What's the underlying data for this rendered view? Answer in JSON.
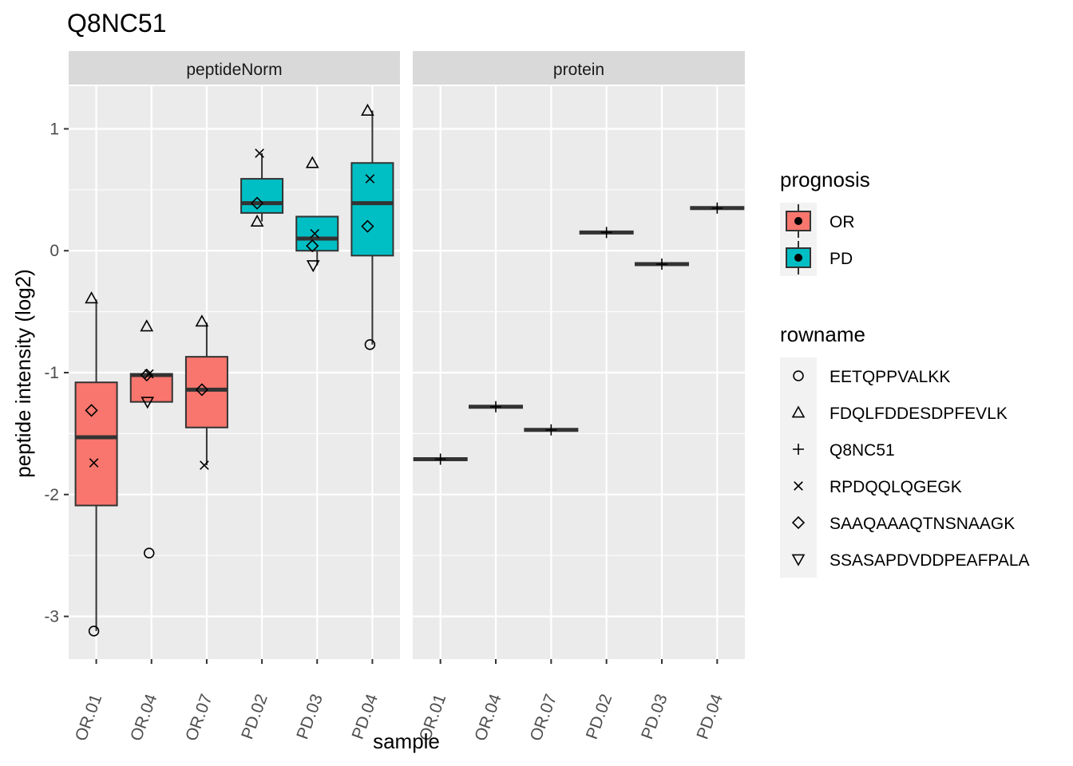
{
  "chart_data": {
    "type": "boxplot",
    "title": "Q8NC51",
    "xlabel": "sample",
    "ylabel": "peptide intensity (log2)",
    "ylim": [
      -3.35,
      1.35
    ],
    "yticks": [
      1,
      0,
      -1,
      -2,
      -3
    ],
    "grid": true,
    "categories": [
      "OR.01",
      "OR.04",
      "OR.07",
      "PD.02",
      "PD.03",
      "PD.04"
    ],
    "facets": [
      {
        "name": "peptideNorm",
        "boxes": [
          {
            "sample": "OR.01",
            "prognosis": "OR",
            "q1": -2.09,
            "median": -1.53,
            "q3": -1.08,
            "whisker_low": -3.12,
            "whisker_high": -0.4
          },
          {
            "sample": "OR.04",
            "prognosis": "OR",
            "q1": -1.24,
            "median": -1.02,
            "q3": -1.01,
            "whisker_low": -1.24,
            "whisker_high": -1.01
          },
          {
            "sample": "OR.07",
            "prognosis": "OR",
            "q1": -1.45,
            "median": -1.14,
            "q3": -0.87,
            "whisker_low": -1.76,
            "whisker_high": -0.59
          },
          {
            "sample": "PD.02",
            "prognosis": "PD",
            "q1": 0.31,
            "median": 0.39,
            "q3": 0.59,
            "whisker_low": 0.24,
            "whisker_high": 0.8
          },
          {
            "sample": "PD.03",
            "prognosis": "PD",
            "q1": 0.0,
            "median": 0.1,
            "q3": 0.28,
            "whisker_low": -0.12,
            "whisker_high": 0.28
          },
          {
            "sample": "PD.04",
            "prognosis": "PD",
            "q1": -0.04,
            "median": 0.39,
            "q3": 0.72,
            "whisker_low": -0.77,
            "whisker_high": 1.15
          }
        ],
        "points": [
          {
            "sample": "OR.01",
            "rowname": "FDQLFDDESDPFEVLK",
            "y": -0.39
          },
          {
            "sample": "OR.01",
            "rowname": "SAAQAAAQTNSNAAGK",
            "y": -1.31
          },
          {
            "sample": "OR.01",
            "rowname": "RPDQQLQGEGK",
            "y": -1.74
          },
          {
            "sample": "OR.01",
            "rowname": "EETQPPVALKK",
            "y": -3.12
          },
          {
            "sample": "OR.04",
            "rowname": "FDQLFDDESDPFEVLK",
            "y": -0.62
          },
          {
            "sample": "OR.04",
            "rowname": "RPDQQLQGEGK",
            "y": -1.01
          },
          {
            "sample": "OR.04",
            "rowname": "SAAQAAAQTNSNAAGK",
            "y": -1.02
          },
          {
            "sample": "OR.04",
            "rowname": "SSASAPDVDDPEAFPALA",
            "y": -1.24
          },
          {
            "sample": "OR.04",
            "rowname": "EETQPPVALKK",
            "y": -2.48
          },
          {
            "sample": "OR.07",
            "rowname": "FDQLFDDESDPFEVLK",
            "y": -0.58
          },
          {
            "sample": "OR.07",
            "rowname": "SAAQAAAQTNSNAAGK",
            "y": -1.14
          },
          {
            "sample": "OR.07",
            "rowname": "RPDQQLQGEGK",
            "y": -1.76
          },
          {
            "sample": "PD.02",
            "rowname": "RPDQQLQGEGK",
            "y": 0.8
          },
          {
            "sample": "PD.02",
            "rowname": "SAAQAAAQTNSNAAGK",
            "y": 0.39
          },
          {
            "sample": "PD.02",
            "rowname": "FDQLFDDESDPFEVLK",
            "y": 0.24
          },
          {
            "sample": "PD.03",
            "rowname": "FDQLFDDESDPFEVLK",
            "y": 0.72
          },
          {
            "sample": "PD.03",
            "rowname": "RPDQQLQGEGK",
            "y": 0.14
          },
          {
            "sample": "PD.03",
            "rowname": "SAAQAAAQTNSNAAGK",
            "y": 0.04
          },
          {
            "sample": "PD.03",
            "rowname": "SSASAPDVDDPEAFPALA",
            "y": -0.12
          },
          {
            "sample": "PD.04",
            "rowname": "FDQLFDDESDPFEVLK",
            "y": 1.15
          },
          {
            "sample": "PD.04",
            "rowname": "RPDQQLQGEGK",
            "y": 0.59
          },
          {
            "sample": "PD.04",
            "rowname": "SAAQAAAQTNSNAAGK",
            "y": 0.2
          },
          {
            "sample": "PD.04",
            "rowname": "EETQPPVALKK",
            "y": -0.77
          }
        ]
      },
      {
        "name": "protein",
        "boxes": [
          {
            "sample": "OR.01",
            "prognosis": "OR",
            "q1": -1.71,
            "median": -1.71,
            "q3": -1.71,
            "whisker_low": -1.71,
            "whisker_high": -1.71
          },
          {
            "sample": "OR.04",
            "prognosis": "OR",
            "q1": -1.28,
            "median": -1.28,
            "q3": -1.28,
            "whisker_low": -1.28,
            "whisker_high": -1.28
          },
          {
            "sample": "OR.07",
            "prognosis": "OR",
            "q1": -1.47,
            "median": -1.47,
            "q3": -1.47,
            "whisker_low": -1.47,
            "whisker_high": -1.47
          },
          {
            "sample": "PD.02",
            "prognosis": "PD",
            "q1": 0.15,
            "median": 0.15,
            "q3": 0.15,
            "whisker_low": 0.15,
            "whisker_high": 0.15
          },
          {
            "sample": "PD.03",
            "prognosis": "PD",
            "q1": -0.11,
            "median": -0.11,
            "q3": -0.11,
            "whisker_low": -0.11,
            "whisker_high": -0.11
          },
          {
            "sample": "PD.04",
            "prognosis": "PD",
            "q1": 0.35,
            "median": 0.35,
            "q3": 0.35,
            "whisker_low": 0.35,
            "whisker_high": 0.35
          }
        ],
        "points": [
          {
            "sample": "OR.01",
            "rowname": "Q8NC51",
            "y": -1.71
          },
          {
            "sample": "OR.04",
            "rowname": "Q8NC51",
            "y": -1.28
          },
          {
            "sample": "OR.07",
            "rowname": "Q8NC51",
            "y": -1.47
          },
          {
            "sample": "PD.02",
            "rowname": "Q8NC51",
            "y": 0.15
          },
          {
            "sample": "PD.03",
            "rowname": "Q8NC51",
            "y": -0.11
          },
          {
            "sample": "PD.04",
            "rowname": "Q8NC51",
            "y": 0.35
          }
        ]
      }
    ],
    "legend": {
      "placement": "right",
      "prognosis": {
        "title": "prognosis",
        "items": [
          {
            "label": "OR",
            "color": "#F8766D"
          },
          {
            "label": "PD",
            "color": "#00BFC4"
          }
        ]
      },
      "rowname": {
        "title": "rowname",
        "items": [
          {
            "label": "EETQPPVALKK",
            "shape": "circle"
          },
          {
            "label": "FDQLFDDESDPFEVLK",
            "shape": "triangle-up"
          },
          {
            "label": "Q8NC51",
            "shape": "plus"
          },
          {
            "label": "RPDQQLQGEGK",
            "shape": "cross"
          },
          {
            "label": "SAAQAAAQTNSNAAGK",
            "shape": "diamond"
          },
          {
            "label": "SSASAPDVDDPEAFPALA",
            "shape": "triangle-down"
          }
        ]
      }
    },
    "colors": {
      "OR": "#F8766D",
      "PD": "#00BFC4",
      "panel": "#EBEBEB",
      "strip": "#D9D9D9"
    }
  }
}
